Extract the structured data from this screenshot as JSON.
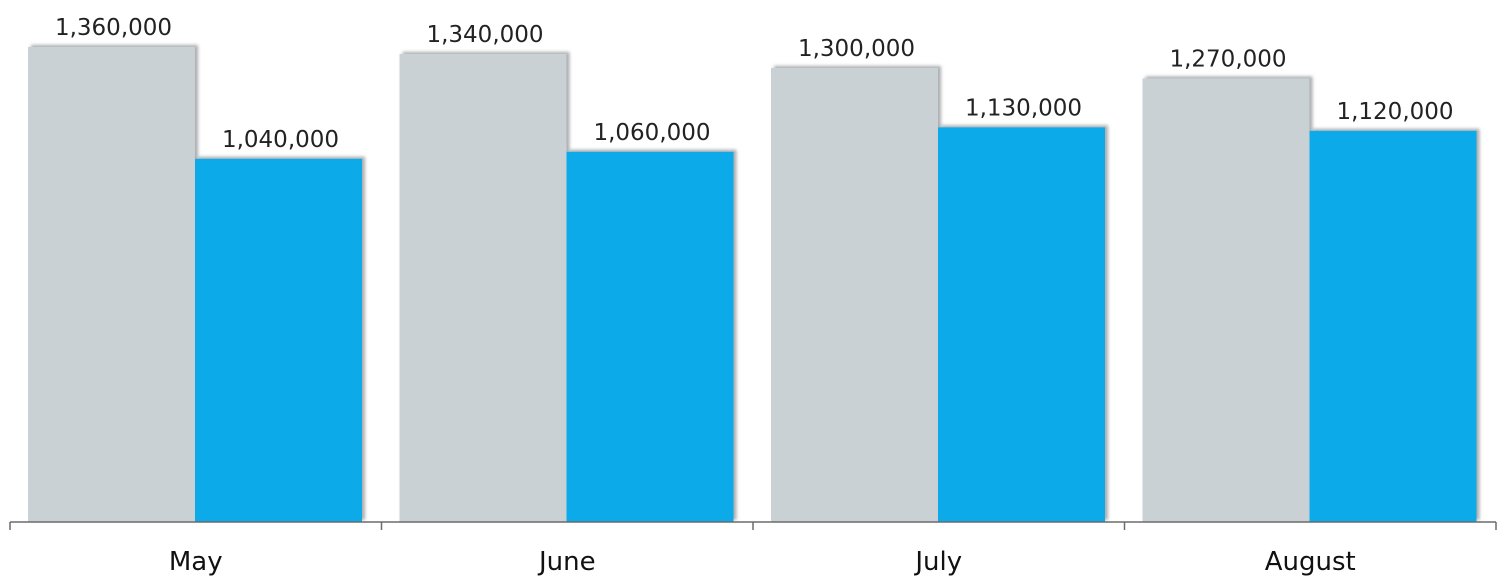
{
  "chart_data": {
    "type": "bar",
    "categories": [
      "May",
      "June",
      "July",
      "August"
    ],
    "series": [
      {
        "values": [
          1360000,
          1340000,
          1300000,
          1270000
        ],
        "labels": [
          "1,360,000",
          "1,340,000",
          "1,300,000",
          "1,270,000"
        ],
        "color": "#c9d1d5"
      },
      {
        "values": [
          1040000,
          1060000,
          1130000,
          1120000
        ],
        "labels": [
          "1,040,000",
          "1,060,000",
          "1,130,000",
          "1,120,000"
        ],
        "color": "#0eaaea"
      }
    ],
    "ylim": [
      0,
      1500000
    ],
    "grid": false,
    "legend": "none",
    "shadow_color": "#a0a4a6",
    "axis_color": "#6b6b6b"
  }
}
